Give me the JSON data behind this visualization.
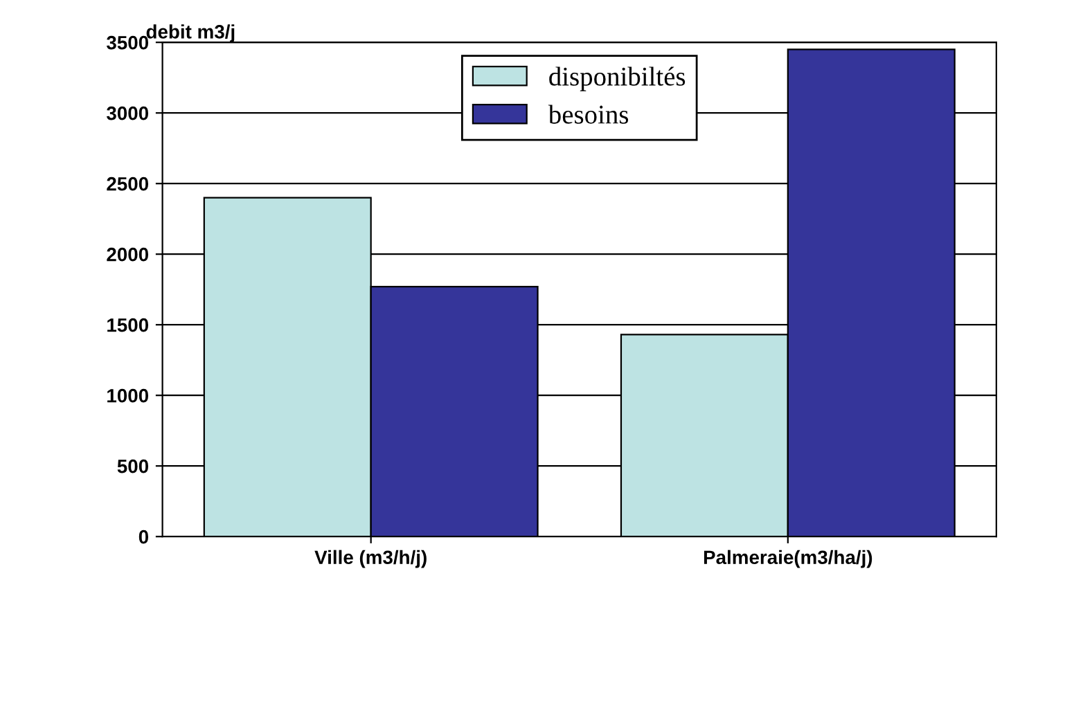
{
  "chart_data": {
    "type": "bar",
    "ylabel": "debit m3/j",
    "categories": [
      "Ville (m3/h/j)",
      "Palmeraie(m3/ha/j)"
    ],
    "series": [
      {
        "name": "disponibiltés",
        "color": "#bde3e3",
        "values": [
          2400,
          1430
        ]
      },
      {
        "name": "besoins",
        "color": "#35359a",
        "values": [
          1770,
          3450
        ]
      }
    ],
    "ylim": [
      0,
      3500
    ],
    "yticks": [
      0,
      500,
      1000,
      1500,
      2000,
      2500,
      3000,
      3500
    ],
    "grid": "y",
    "legend": "top"
  }
}
